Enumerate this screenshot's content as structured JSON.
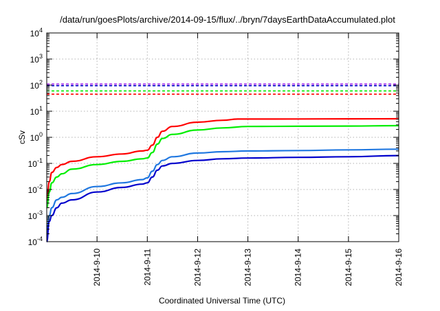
{
  "chart_data": {
    "type": "line",
    "title": "/data/run/goesPlots/archive/2014-09-15/flux/../bryn/7daysEarthDataAccumulated.plot",
    "xlabel": "Coordinated Universal Time (UTC)",
    "ylabel": "cSv",
    "y_scale": "log",
    "ylim": [
      0.0001,
      10000
    ],
    "xlim": [
      "2014-09-09",
      "2014-09-16"
    ],
    "grid": true,
    "legend": "none",
    "x_ticks": [
      "2014-9-10",
      "2014-9-11",
      "2014-9-12",
      "2014-9-13",
      "2014-9-14",
      "2014-9-15",
      "2014-9-16"
    ],
    "y_ticks": [
      {
        "base": "10",
        "exp": "-4"
      },
      {
        "base": "10",
        "exp": "-3"
      },
      {
        "base": "10",
        "exp": "-2"
      },
      {
        "base": "10",
        "exp": "-1"
      },
      {
        "base": "10",
        "exp": "0"
      },
      {
        "base": "10",
        "exp": "1"
      },
      {
        "base": "10",
        "exp": "2"
      },
      {
        "base": "10",
        "exp": "3"
      },
      {
        "base": "10",
        "exp": "4"
      }
    ],
    "series": [
      {
        "color": "#ff0000",
        "points": [
          [
            "2014-09-09",
            0.003
          ],
          [
            "2014-09-09T01:12",
            0.02
          ],
          [
            "2014-09-09T02:24",
            0.045
          ],
          [
            "2014-09-09T04:48",
            0.07
          ],
          [
            "2014-09-09T07:12",
            0.09
          ],
          [
            "2014-09-09T12:00",
            0.12
          ],
          [
            "2014-09-10",
            0.18
          ],
          [
            "2014-09-10T12:00",
            0.23
          ],
          [
            "2014-09-10T21:36",
            0.3
          ],
          [
            "2014-09-11",
            0.32
          ],
          [
            "2014-09-11T02:24",
            0.5
          ],
          [
            "2014-09-11T04:48",
            1.0
          ],
          [
            "2014-09-11T07:12",
            1.7
          ],
          [
            "2014-09-11T12:00",
            2.6
          ],
          [
            "2014-09-12",
            3.8
          ],
          [
            "2014-09-12T12:00",
            4.5
          ],
          [
            "2014-09-12T19:12",
            5.0
          ],
          [
            "2014-09-13",
            5.0
          ],
          [
            "2014-09-14",
            5.05
          ],
          [
            "2014-09-15",
            5.1
          ],
          [
            "2014-09-16",
            5.15
          ]
        ]
      },
      {
        "color": "#00ee00",
        "points": [
          [
            "2014-09-09",
            0.002
          ],
          [
            "2014-09-09T01:12",
            0.008
          ],
          [
            "2014-09-09T02:24",
            0.018
          ],
          [
            "2014-09-09T04:48",
            0.03
          ],
          [
            "2014-09-09T07:12",
            0.04
          ],
          [
            "2014-09-09T12:00",
            0.06
          ],
          [
            "2014-09-10",
            0.09
          ],
          [
            "2014-09-10T12:00",
            0.12
          ],
          [
            "2014-09-10T21:36",
            0.15
          ],
          [
            "2014-09-11",
            0.16
          ],
          [
            "2014-09-11T02:24",
            0.26
          ],
          [
            "2014-09-11T04:48",
            0.55
          ],
          [
            "2014-09-11T07:12",
            0.9
          ],
          [
            "2014-09-11T12:00",
            1.3
          ],
          [
            "2014-09-12",
            1.9
          ],
          [
            "2014-09-12T12:00",
            2.3
          ],
          [
            "2014-09-13",
            2.6
          ],
          [
            "2014-09-14",
            2.65
          ],
          [
            "2014-09-15",
            2.7
          ],
          [
            "2014-09-16",
            2.8
          ]
        ]
      },
      {
        "color": "#1f77e0",
        "points": [
          [
            "2014-09-09",
            0.0002
          ],
          [
            "2014-09-09T01:12",
            0.001
          ],
          [
            "2014-09-09T02:24",
            0.002
          ],
          [
            "2014-09-09T04:48",
            0.004
          ],
          [
            "2014-09-09T07:12",
            0.005
          ],
          [
            "2014-09-09T12:00",
            0.007
          ],
          [
            "2014-09-10",
            0.013
          ],
          [
            "2014-09-10T12:00",
            0.018
          ],
          [
            "2014-09-10T21:36",
            0.024
          ],
          [
            "2014-09-11",
            0.028
          ],
          [
            "2014-09-11T02:24",
            0.05
          ],
          [
            "2014-09-11T04:48",
            0.09
          ],
          [
            "2014-09-11T07:12",
            0.13
          ],
          [
            "2014-09-11T12:00",
            0.18
          ],
          [
            "2014-09-12",
            0.25
          ],
          [
            "2014-09-12T12:00",
            0.28
          ],
          [
            "2014-09-13",
            0.3
          ],
          [
            "2014-09-14",
            0.31
          ],
          [
            "2014-09-15",
            0.33
          ],
          [
            "2014-09-16",
            0.35
          ]
        ]
      },
      {
        "color": "#0000cc",
        "points": [
          [
            "2014-09-09",
            0.0001
          ],
          [
            "2014-09-09T01:12",
            0.0006
          ],
          [
            "2014-09-09T02:24",
            0.001
          ],
          [
            "2014-09-09T04:48",
            0.002
          ],
          [
            "2014-09-09T07:12",
            0.003
          ],
          [
            "2014-09-09T12:00",
            0.004
          ],
          [
            "2014-09-10",
            0.008
          ],
          [
            "2014-09-10T12:00",
            0.012
          ],
          [
            "2014-09-10T21:36",
            0.016
          ],
          [
            "2014-09-11",
            0.018
          ],
          [
            "2014-09-11T02:24",
            0.03
          ],
          [
            "2014-09-11T04:48",
            0.055
          ],
          [
            "2014-09-11T07:12",
            0.08
          ],
          [
            "2014-09-11T12:00",
            0.1
          ],
          [
            "2014-09-12",
            0.13
          ],
          [
            "2014-09-12T12:00",
            0.15
          ],
          [
            "2014-09-13",
            0.16
          ],
          [
            "2014-09-14",
            0.17
          ],
          [
            "2014-09-15",
            0.18
          ],
          [
            "2014-09-16",
            0.2
          ]
        ]
      }
    ],
    "reference_lines": [
      {
        "color": "#a020f0",
        "value": 110
      },
      {
        "color": "#0000cc",
        "value": 95
      },
      {
        "color": "#00ee00",
        "value": 60
      },
      {
        "color": "#ff0000",
        "value": 45
      }
    ]
  }
}
